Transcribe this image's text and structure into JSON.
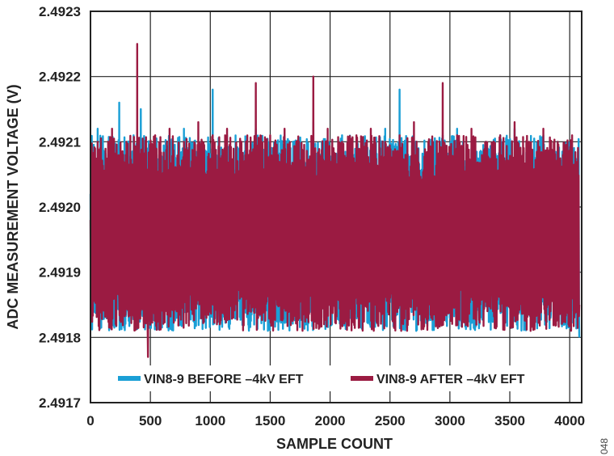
{
  "chart_data": {
    "type": "line",
    "title": "",
    "xlabel": "SAMPLE COUNT",
    "ylabel": "ADC MEASUREMENT VOLTAGE (V)",
    "xlim": [
      0,
      4100
    ],
    "ylim": [
      2.4917,
      2.4923
    ],
    "x_ticks": [
      0,
      500,
      1000,
      1500,
      2000,
      2500,
      3000,
      3500,
      4000
    ],
    "x_tick_labels": [
      "0",
      "500",
      "1000",
      "1500",
      "2000",
      "2500",
      "3000",
      "3500",
      "4000"
    ],
    "y_ticks": [
      2.4917,
      2.4918,
      2.4919,
      2.492,
      2.4921,
      2.4922,
      2.4923
    ],
    "y_tick_labels": [
      "2.4917",
      "2.4918",
      "2.4919",
      "2.4920",
      "2.4921",
      "2.4922",
      "2.4923"
    ],
    "grid": true,
    "legend_position": "bottom-center",
    "series": [
      {
        "name": "VIN8-9 BEFORE –4kV EFT",
        "color": "#1a9fd6",
        "x": [
          0,
          60,
          120,
          180,
          240,
          300,
          360,
          420,
          480,
          540,
          600,
          660,
          720,
          780,
          840,
          900,
          960,
          1020,
          1080,
          1140,
          1200,
          1260,
          1320,
          1380,
          1440,
          1500,
          1560,
          1620,
          1680,
          1740,
          1800,
          1860,
          1920,
          1980,
          2040,
          2100,
          2160,
          2220,
          2280,
          2340,
          2400,
          2460,
          2520,
          2580,
          2640,
          2700,
          2760,
          2820,
          2880,
          2940,
          3000,
          3060,
          3120,
          3180,
          3240,
          3300,
          3360,
          3420,
          3480,
          3540,
          3600,
          3660,
          3720,
          3780,
          3840,
          3900,
          3960,
          4020,
          4080
        ],
        "y": [
          2.49202,
          2.49212,
          2.49186,
          2.4921,
          2.49216,
          2.49184,
          2.49211,
          2.49215,
          2.49185,
          2.4921,
          2.4919,
          2.49208,
          2.49183,
          2.49212,
          2.49188,
          2.49209,
          2.49186,
          2.49218,
          2.49184,
          2.49211,
          2.49189,
          2.4921,
          2.49182,
          2.49212,
          2.49187,
          2.49208,
          2.49184,
          2.49211,
          2.49186,
          2.4921,
          2.49182,
          2.49213,
          2.49187,
          2.49209,
          2.49186,
          2.49211,
          2.49184,
          2.4921,
          2.49188,
          2.49209,
          2.49183,
          2.49212,
          2.49186,
          2.49218,
          2.49182,
          2.4921,
          2.49184,
          2.49209,
          2.49186,
          2.49211,
          2.49183,
          2.49212,
          2.49187,
          2.49209,
          2.49184,
          2.4921,
          2.49183,
          2.49211,
          2.49186,
          2.49212,
          2.49185,
          2.49209,
          2.49184,
          2.49211,
          2.49183,
          2.4921,
          2.49182,
          2.49209,
          2.4918
        ]
      },
      {
        "name": "VIN8-9 AFTER –4kV EFT",
        "color": "#9b1b42",
        "x": [
          0,
          60,
          120,
          180,
          240,
          300,
          360,
          390,
          420,
          480,
          540,
          600,
          660,
          720,
          780,
          840,
          900,
          960,
          1020,
          1080,
          1140,
          1200,
          1260,
          1320,
          1380,
          1440,
          1500,
          1560,
          1620,
          1680,
          1740,
          1800,
          1860,
          1920,
          1980,
          2040,
          2100,
          2160,
          2220,
          2280,
          2340,
          2400,
          2460,
          2520,
          2580,
          2640,
          2700,
          2760,
          2820,
          2880,
          2940,
          3000,
          3060,
          3120,
          3180,
          3240,
          3300,
          3360,
          3420,
          3480,
          3540,
          3600,
          3660,
          3720,
          3780,
          3840,
          3900,
          3960,
          4020,
          4080
        ],
        "y": [
          2.49198,
          2.4921,
          2.49187,
          2.49212,
          2.49186,
          2.4921,
          2.49184,
          2.49225,
          2.49188,
          2.49177,
          2.49211,
          2.49186,
          2.49212,
          2.49184,
          2.4921,
          2.49187,
          2.49213,
          2.49185,
          2.49211,
          2.49182,
          2.49212,
          2.49187,
          2.4921,
          2.49184,
          2.49219,
          2.49186,
          2.49211,
          2.49185,
          2.49212,
          2.49187,
          2.4921,
          2.49184,
          2.4922,
          2.49186,
          2.49212,
          2.49185,
          2.4921,
          2.49186,
          2.49211,
          2.49184,
          2.49212,
          2.49182,
          2.4921,
          2.49186,
          2.49211,
          2.49185,
          2.49213,
          2.49187,
          2.4921,
          2.49184,
          2.49219,
          2.49186,
          2.49211,
          2.49185,
          2.49212,
          2.49187,
          2.4921,
          2.49184,
          2.49211,
          2.49186,
          2.49213,
          2.49185,
          2.4921,
          2.49187,
          2.49212,
          2.49184,
          2.4921,
          2.49186,
          2.49211,
          2.49185
        ]
      }
    ]
  },
  "figure_id": "048"
}
